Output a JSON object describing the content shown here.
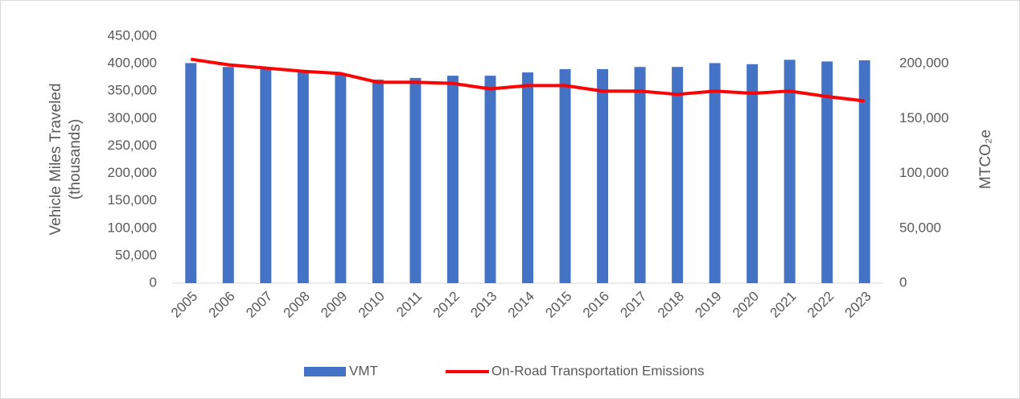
{
  "chart_data": {
    "type": "bar-line",
    "y_label": [
      "Vehicle Miles Traveled",
      "(thousands)"
    ],
    "y2_label": "MTCO₂e",
    "categories": [
      "2005",
      "2006",
      "2007",
      "2008",
      "2009",
      "2010",
      "2011",
      "2012",
      "2013",
      "2014",
      "2015",
      "2016",
      "2017",
      "2018",
      "2019",
      "2020",
      "2021",
      "2022",
      "2023"
    ],
    "series": [
      {
        "name": "VMT",
        "type": "bar",
        "axis": "y",
        "color": "#4472c4",
        "values": [
          401000,
          394000,
          390000,
          385000,
          381000,
          371000,
          374000,
          378000,
          378000,
          384000,
          390000,
          390000,
          394000,
          394000,
          401000,
          399000,
          407000,
          404000,
          406000
        ]
      },
      {
        "name": "On-Road Transportation Emissions",
        "type": "line",
        "axis": "y2",
        "color": "#ff0000",
        "values": [
          204000,
          199000,
          196000,
          193000,
          191000,
          183000,
          183000,
          182000,
          177000,
          180000,
          180000,
          175000,
          175000,
          172000,
          175000,
          173000,
          175000,
          170000,
          166000
        ]
      }
    ],
    "ylim": [
      0,
      450000
    ],
    "yticks": [
      0,
      {
        "value": 50000,
        "label": "50,000"
      },
      {
        "value": 100000,
        "label": "100,000"
      },
      {
        "value": 150000,
        "label": "150,000"
      },
      {
        "value": 200000,
        "label": "200,000"
      },
      {
        "value": 250000,
        "label": "250,000"
      },
      {
        "value": 300000,
        "label": "300,000"
      },
      {
        "value": 350000,
        "label": "350,000"
      },
      {
        "value": 400000,
        "label": "400,000"
      },
      {
        "value": 450000,
        "label": "450,000"
      }
    ],
    "y2lim": [
      0,
      225000
    ],
    "y2ticks": [
      0,
      {
        "value": 50000,
        "label": "50,000"
      },
      {
        "value": 100000,
        "label": "100,000"
      },
      {
        "value": 150000,
        "label": "150,000"
      },
      {
        "value": 200000,
        "label": "200,000"
      }
    ],
    "legend": "bottom"
  }
}
